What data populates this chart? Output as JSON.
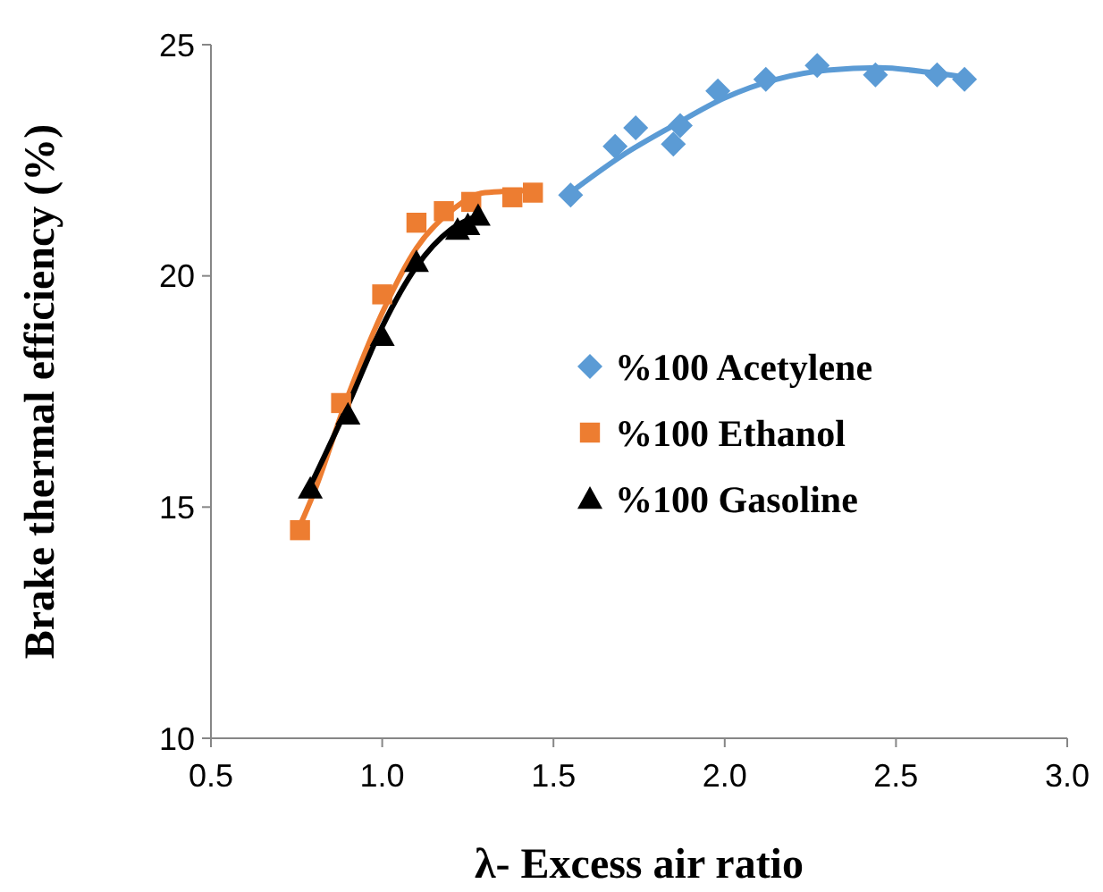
{
  "chart_data": {
    "type": "scatter",
    "xlabel": "λ- Excess air ratio",
    "ylabel": "Brake thermal efficiency (%)",
    "xlim": [
      0.5,
      3.0
    ],
    "ylim": [
      10,
      25
    ],
    "xticks": [
      {
        "value": 0.5,
        "label": "0.5"
      },
      {
        "value": 1,
        "label": "1.0"
      },
      {
        "value": 1.5,
        "label": "1.5"
      },
      {
        "value": 2,
        "label": "2.0"
      },
      {
        "value": 2.5,
        "label": "2.5"
      },
      {
        "value": 3,
        "label": "3.0"
      }
    ],
    "yticks": [
      10,
      15,
      20,
      25
    ],
    "grid": false,
    "legend": "center right",
    "series": [
      {
        "name": "%100 Acetylene",
        "color": "#5b9bd5",
        "marker": "diamond",
        "x": [
          1.55,
          1.68,
          1.74,
          1.85,
          1.87,
          1.98,
          2.12,
          2.27,
          2.44,
          2.62,
          2.7
        ],
        "values": [
          21.75,
          22.8,
          23.2,
          22.85,
          23.25,
          24.0,
          24.25,
          24.55,
          24.35,
          24.35,
          24.25
        ]
      },
      {
        "name": "%100 Ethanol",
        "color": "#ed7d31",
        "marker": "square",
        "x": [
          0.76,
          0.88,
          1.0,
          1.1,
          1.18,
          1.26,
          1.38,
          1.44
        ],
        "values": [
          14.5,
          17.25,
          19.6,
          21.15,
          21.4,
          21.6,
          21.7,
          21.8
        ]
      },
      {
        "name": "%100 Gasoline",
        "color": "#000000",
        "marker": "triangle",
        "x": [
          0.79,
          0.9,
          1.0,
          1.1,
          1.22,
          1.25,
          1.28
        ],
        "values": [
          15.4,
          17.0,
          18.7,
          20.3,
          21.0,
          21.1,
          21.3
        ]
      },
      {
        "type": "line",
        "color": "#5b9bd5",
        "marker": "none",
        "x": [
          1.54,
          1.7,
          1.85,
          2.0,
          2.15,
          2.3,
          2.45,
          2.6,
          2.7
        ],
        "values": [
          21.75,
          22.6,
          23.25,
          23.85,
          24.25,
          24.45,
          24.5,
          24.4,
          24.3
        ]
      },
      {
        "type": "line",
        "color": "#ed7d31",
        "marker": "none",
        "x": [
          0.76,
          0.8,
          0.9,
          1.0,
          1.1,
          1.2,
          1.3,
          1.44
        ],
        "values": [
          14.6,
          15.3,
          17.4,
          19.2,
          20.6,
          21.4,
          21.8,
          21.85
        ]
      },
      {
        "type": "line",
        "color": "#000000",
        "marker": "none",
        "x": [
          0.78,
          0.9,
          1.0,
          1.1,
          1.2,
          1.28
        ],
        "values": [
          15.3,
          17.2,
          18.9,
          20.2,
          21.0,
          21.3
        ]
      }
    ]
  }
}
